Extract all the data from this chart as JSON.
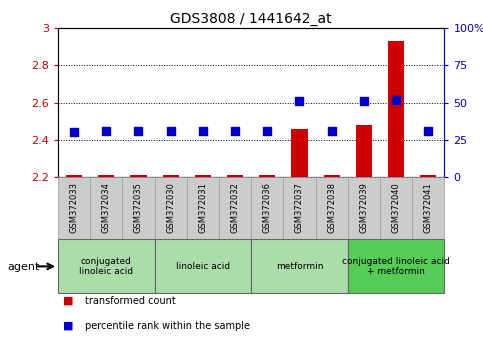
{
  "title": "GDS3808 / 1441642_at",
  "samples": [
    "GSM372033",
    "GSM372034",
    "GSM372035",
    "GSM372030",
    "GSM372031",
    "GSM372032",
    "GSM372036",
    "GSM372037",
    "GSM372038",
    "GSM372039",
    "GSM372040",
    "GSM372041"
  ],
  "transformed_count": [
    2.21,
    2.21,
    2.21,
    2.21,
    2.21,
    2.21,
    2.21,
    2.46,
    2.21,
    2.48,
    2.93,
    2.21
  ],
  "percentile_rank": [
    30,
    31,
    31,
    31,
    31,
    31,
    31,
    51,
    31,
    51,
    52,
    31
  ],
  "bar_color": "#cc0000",
  "dot_color": "#0000cc",
  "ylim_left": [
    2.2,
    3.0
  ],
  "ylim_right": [
    0,
    100
  ],
  "yticks_left": [
    2.2,
    2.4,
    2.6,
    2.8,
    3.0
  ],
  "ytick_labels_left": [
    "2.2",
    "2.4",
    "2.6",
    "2.8",
    "3"
  ],
  "yticks_right": [
    0,
    25,
    50,
    75,
    100
  ],
  "ytick_labels_right": [
    "0",
    "25",
    "50",
    "75",
    "100%"
  ],
  "groups": [
    {
      "label": "conjugated\nlinoleic acid",
      "start": 0,
      "end": 2,
      "color": "#aaddaa"
    },
    {
      "label": "linoleic acid",
      "start": 3,
      "end": 5,
      "color": "#aaddaa"
    },
    {
      "label": "metformin",
      "start": 6,
      "end": 8,
      "color": "#aaddaa"
    },
    {
      "label": "conjugated linoleic acid\n+ metformin",
      "start": 9,
      "end": 11,
      "color": "#55cc55"
    }
  ],
  "agent_label": "agent",
  "legend_bar_label": "transformed count",
  "legend_dot_label": "percentile rank within the sample",
  "bar_width": 0.5,
  "dot_size": 30,
  "sample_box_color": "#cccccc",
  "sample_box_border": "#999999"
}
